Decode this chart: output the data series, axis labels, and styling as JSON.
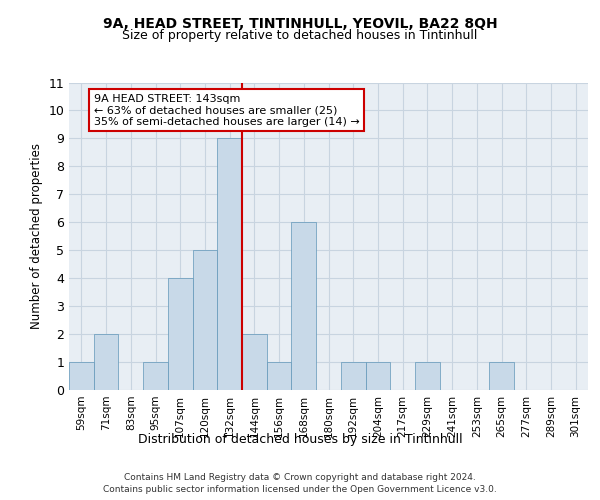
{
  "title_line1": "9A, HEAD STREET, TINTINHULL, YEOVIL, BA22 8QH",
  "title_line2": "Size of property relative to detached houses in Tintinhull",
  "xlabel": "Distribution of detached houses by size in Tintinhull",
  "ylabel": "Number of detached properties",
  "categories": [
    "59sqm",
    "71sqm",
    "83sqm",
    "95sqm",
    "107sqm",
    "120sqm",
    "132sqm",
    "144sqm",
    "156sqm",
    "168sqm",
    "180sqm",
    "192sqm",
    "204sqm",
    "217sqm",
    "229sqm",
    "241sqm",
    "253sqm",
    "265sqm",
    "277sqm",
    "289sqm",
    "301sqm"
  ],
  "bar_heights": [
    1,
    2,
    0,
    1,
    4,
    5,
    9,
    2,
    1,
    6,
    0,
    1,
    1,
    0,
    1,
    0,
    0,
    1,
    0,
    0,
    0
  ],
  "bar_color": "#c8d9e8",
  "bar_edge_color": "#6096b8",
  "grid_color": "#c8d4e0",
  "bg_color": "#e8eef4",
  "vline_color": "#cc0000",
  "annotation_text": "9A HEAD STREET: 143sqm\n← 63% of detached houses are smaller (25)\n35% of semi-detached houses are larger (14) →",
  "annotation_box_color": "#ffffff",
  "annotation_box_edge": "#cc0000",
  "ylim": [
    0,
    11
  ],
  "yticks": [
    0,
    1,
    2,
    3,
    4,
    5,
    6,
    7,
    8,
    9,
    10,
    11
  ],
  "footer_line1": "Contains HM Land Registry data © Crown copyright and database right 2024.",
  "footer_line2": "Contains public sector information licensed under the Open Government Licence v3.0."
}
